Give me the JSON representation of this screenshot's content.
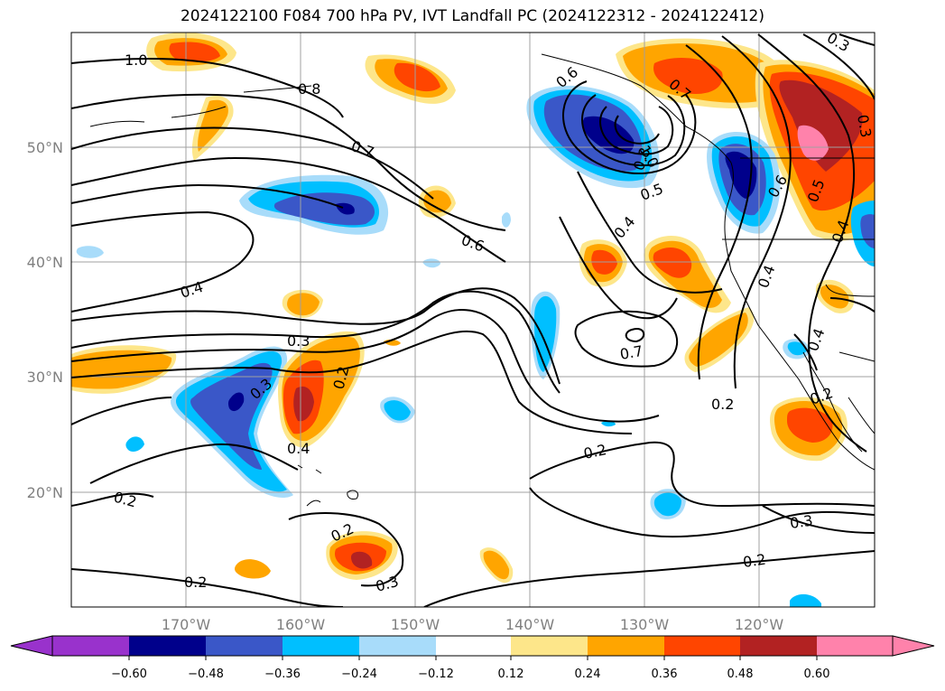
{
  "title": "2024122100 F084 700 hPa PV, IVT Landfall PC (2024122312 - 2024122412)",
  "lat_labels": [
    "50°N",
    "40°N",
    "30°N",
    "20°N"
  ],
  "lon_labels": [
    "170°W",
    "160°W",
    "150°W",
    "140°W",
    "130°W",
    "120°W"
  ],
  "colorbar": {
    "ticks": [
      "−0.60",
      "−0.48",
      "−0.36",
      "−0.24",
      "−0.12",
      "0.12",
      "0.24",
      "0.36",
      "0.48",
      "0.60"
    ],
    "colors": [
      "#9932cc",
      "#00008b",
      "#3a57c8",
      "#00bfff",
      "#a8dcfa",
      "#ffffff",
      "#fde68a",
      "#ffa500",
      "#ff4500",
      "#b22222",
      "#ff82ab"
    ]
  },
  "contour_labels": [
    "1.0",
    "0.8",
    "0.7",
    "0.6",
    "0.4",
    "0.3",
    "0.2",
    "0.3",
    "0.2",
    "0.4",
    "0.2",
    "0.2",
    "0.3",
    "0.6",
    "0.7",
    "0.8",
    "1.0",
    "0.5",
    "0.4",
    "0.7",
    "0.2",
    "0.2",
    "0.3",
    "0.2",
    "0.4",
    "0.4",
    "0.5",
    "0.4",
    "0.3",
    "0.6",
    "0.3",
    "0.2"
  ]
}
